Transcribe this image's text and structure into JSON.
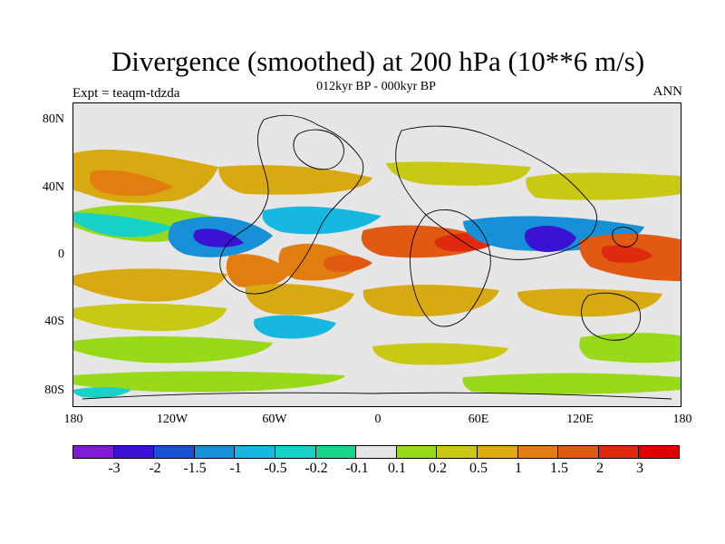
{
  "title": "Divergence (smoothed) at 200 hPa (10**6 m/s)",
  "subtitle": "012kyr BP - 000kyr BP",
  "left_label": "Expt = teaqm-tdzda",
  "right_label": "ANN",
  "lat_ticks": [
    "80N",
    "40N",
    "0",
    "40S",
    "80S"
  ],
  "lon_ticks": [
    "180",
    "120W",
    "60W",
    "0",
    "60E",
    "120E",
    "180"
  ],
  "colorbar": {
    "labels": [
      "-3",
      "-2",
      "-1.5",
      "-1",
      "-0.5",
      "-0.2",
      "-0.1",
      "0.1",
      "0.2",
      "0.5",
      "1",
      "1.5",
      "2",
      "3"
    ],
    "colors": [
      "#7e1ad8",
      "#3a12d4",
      "#1a4fd6",
      "#1890d8",
      "#17b8e0",
      "#18d2c8",
      "#18d48c",
      "#e6e6e6",
      "#9ad81a",
      "#c9c812",
      "#ddaa10",
      "#e27e10",
      "#e05a12",
      "#e02a10",
      "#e00000"
    ]
  },
  "map": {
    "map_type": "global-equirectangular",
    "lon_range": [
      -180,
      180
    ],
    "lat_range": [
      -90,
      90
    ],
    "field": "divergence difference",
    "coastlines": true
  }
}
